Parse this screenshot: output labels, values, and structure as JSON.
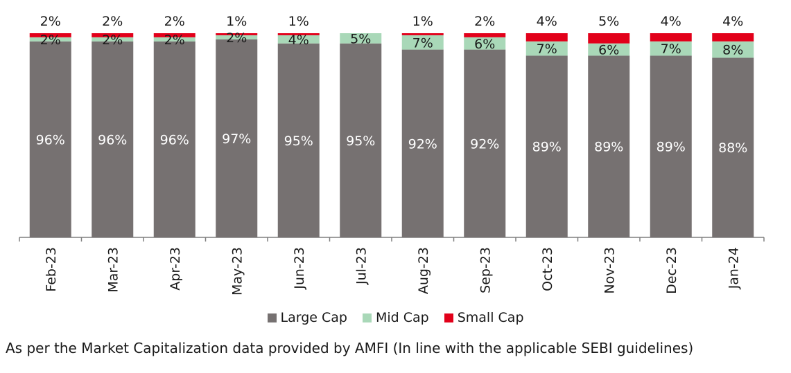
{
  "chart_data": {
    "type": "bar",
    "stacked": true,
    "categories": [
      "Feb-23",
      "Mar-23",
      "Apr-23",
      "May-23",
      "Jun-23",
      "Jul-23",
      "Aug-23",
      "Sep-23",
      "Oct-23",
      "Nov-23",
      "Dec-23",
      "Jan-24"
    ],
    "series": [
      {
        "name": "Large Cap",
        "color": "#767171",
        "values": [
          96,
          96,
          96,
          97,
          95,
          95,
          92,
          92,
          89,
          89,
          89,
          88
        ]
      },
      {
        "name": "Mid Cap",
        "color": "#a9d8b8",
        "values": [
          2,
          2,
          2,
          2,
          4,
          5,
          7,
          6,
          7,
          6,
          7,
          8
        ]
      },
      {
        "name": "Small Cap",
        "color": "#e2001a",
        "values": [
          2,
          2,
          2,
          1,
          1,
          0,
          1,
          2,
          4,
          5,
          4,
          4
        ]
      }
    ],
    "small_labels": [
      "2%",
      "2%",
      "2%",
      "1%",
      "1%",
      "",
      "1%",
      "2%",
      "4%",
      "5%",
      "4%",
      "4%"
    ],
    "value_suffix": "%",
    "ylim": [
      0,
      100
    ],
    "grid": false,
    "legend_position": "bottom",
    "footnote": "As per the Market Capitalization data provided by AMFI (In line with the applicable SEBI guidelines)"
  }
}
